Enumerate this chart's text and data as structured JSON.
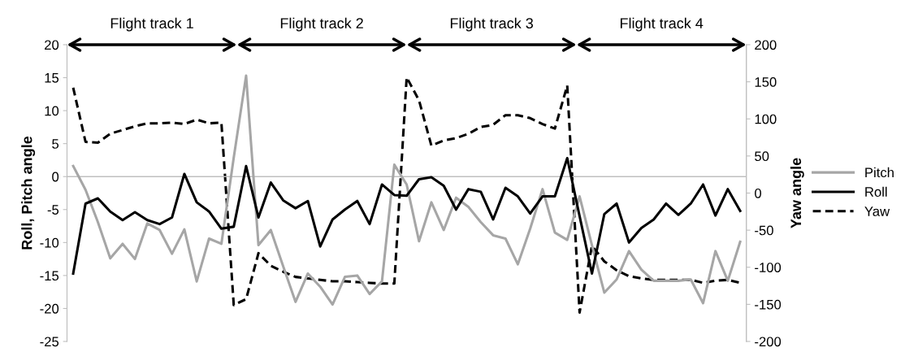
{
  "chart_data": {
    "type": "line",
    "ylabel": "Roll, Pitch angle",
    "y2label": "Yaw angle",
    "categories": [
      null,
      null,
      null,
      null,
      null,
      null,
      null,
      null,
      null,
      null,
      null,
      null,
      null,
      null,
      null,
      null,
      null,
      null,
      null,
      null,
      null,
      null,
      null,
      null,
      null,
      null,
      null,
      null,
      null,
      null,
      null,
      null,
      null,
      null,
      null,
      null,
      null,
      null,
      null,
      null,
      null,
      null,
      null,
      null,
      null,
      null,
      null,
      null,
      null,
      null,
      null,
      null,
      null,
      null,
      null
    ],
    "series": [
      {
        "name": "Pitch",
        "color": "#a6a6a6",
        "line_style": "solid",
        "values": [
          1.6,
          -2.0,
          -6.9,
          -12.4,
          -10.2,
          -12.5,
          -7.1,
          -8.1,
          -11.7,
          -8.0,
          -15.9,
          -9.4,
          -10.2,
          2.9,
          15.3,
          -10.4,
          -8.1,
          -13.6,
          -19.0,
          -14.7,
          -16.7,
          -19.4,
          -15.2,
          -15.0,
          -17.8,
          -15.9,
          1.8,
          -1.2,
          -9.8,
          -3.9,
          -8.1,
          -3.2,
          -4.6,
          -6.9,
          -8.9,
          -9.4,
          -13.3,
          -7.9,
          -1.9,
          -8.5,
          -9.6,
          -3.0,
          -10.4,
          -17.6,
          -15.6,
          -11.3,
          -14.1,
          -15.8,
          -15.8,
          -15.8,
          -15.6,
          -19.2,
          -11.3,
          -15.8,
          -9.9
        ]
      },
      {
        "name": "Roll",
        "color": "#000000",
        "line_style": "solid",
        "values": [
          -14.7,
          -4.1,
          -3.3,
          -5.3,
          -6.6,
          -5.4,
          -6.6,
          -7.2,
          -6.2,
          0.4,
          -3.9,
          -5.3,
          -7.9,
          -7.6,
          1.6,
          -6.2,
          -0.9,
          -3.6,
          -4.8,
          -3.7,
          -10.6,
          -6.5,
          -5.0,
          -3.7,
          -7.2,
          -1.2,
          -2.8,
          -2.9,
          -0.4,
          -0.1,
          -1.4,
          -5.0,
          -1.9,
          -2.3,
          -6.5,
          -1.7,
          -3.0,
          -5.6,
          -3.0,
          -3.0,
          2.8,
          -6.0,
          -14.7,
          -5.7,
          -4.1,
          -10.0,
          -7.8,
          -6.5,
          -4.1,
          -5.8,
          -4.1,
          -1.2,
          -5.9,
          -1.9,
          -5.2
        ]
      },
      {
        "name": "Yaw",
        "color": "#000000",
        "line_style": "dashed",
        "axis": "y2",
        "values": [
          142,
          69,
          68,
          80,
          85,
          90,
          94,
          94,
          95,
          93,
          99,
          94,
          95,
          -151,
          -143,
          -81,
          -98,
          -106,
          -113,
          -115,
          -117,
          -119,
          -119,
          -120,
          -121,
          -122,
          -122,
          156,
          125,
          64,
          71,
          74,
          80,
          89,
          92,
          105,
          105,
          101,
          93,
          87,
          145,
          -161,
          -71,
          -92,
          -104,
          -112,
          -115,
          -117,
          -117,
          -117,
          -117,
          -121,
          -118,
          -117,
          -121
        ]
      }
    ],
    "ylim": [
      -25,
      20
    ],
    "yticks": [
      -25,
      -20,
      -15,
      -10,
      -5,
      0,
      5,
      10,
      15,
      20
    ],
    "y2lim": [
      -200,
      200
    ],
    "y2ticks": [
      -200,
      -150,
      -100,
      -50,
      0,
      50,
      100,
      150,
      200
    ],
    "annotations": [
      "Flight track 1",
      "Flight track 2",
      "Flight track 3",
      "Flight track 4"
    ],
    "ref_lines": [
      {
        "axis": "y",
        "value": 0,
        "color": "#bfbfbf"
      }
    ],
    "grid": false,
    "legend": "right"
  }
}
